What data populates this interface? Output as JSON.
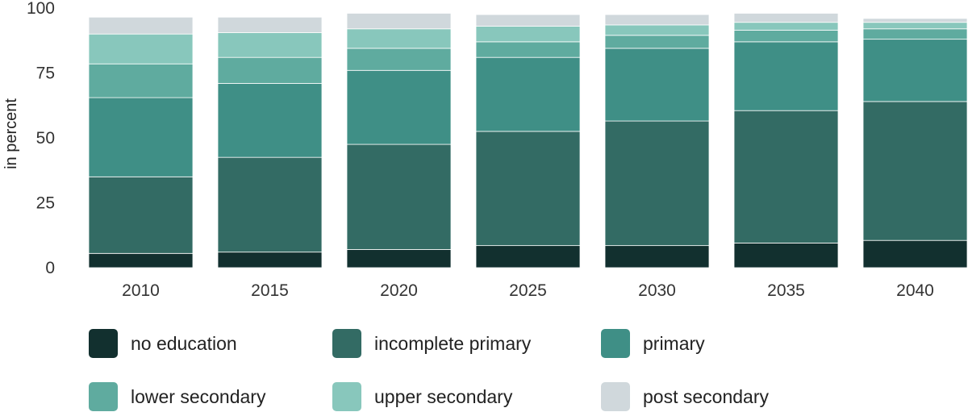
{
  "chart_data": {
    "type": "bar",
    "stacked": true,
    "ylabel": "in percent",
    "ylim": [
      0,
      100
    ],
    "yticks": [
      0,
      25,
      50,
      75,
      100
    ],
    "grid": false,
    "legend_position": "bottom",
    "categories": [
      "2010",
      "2015",
      "2020",
      "2025",
      "2030",
      "2035",
      "2040"
    ],
    "series": [
      {
        "name": "no education",
        "color": "#12302f",
        "values": [
          5.5,
          6,
          7,
          8.5,
          8.5,
          9.5,
          10.5
        ]
      },
      {
        "name": "incomplete primary",
        "color": "#336b64",
        "values": [
          29.5,
          36.5,
          40.5,
          44,
          48,
          51,
          53.5
        ]
      },
      {
        "name": "primary",
        "color": "#3f8f86",
        "values": [
          30.5,
          28.5,
          28.5,
          28.5,
          28,
          26.5,
          24
        ]
      },
      {
        "name": "lower secondary",
        "color": "#5fab9f",
        "values": [
          13,
          10,
          8.5,
          6,
          5,
          4.5,
          4
        ]
      },
      {
        "name": "upper secondary",
        "color": "#88c7bc",
        "values": [
          11.5,
          9.5,
          7.5,
          6,
          4,
          3,
          2.5
        ]
      },
      {
        "name": "post secondary",
        "color": "#d0d8dc",
        "values": [
          6.5,
          6,
          6,
          4.5,
          4,
          3.5,
          1.5
        ]
      }
    ]
  }
}
